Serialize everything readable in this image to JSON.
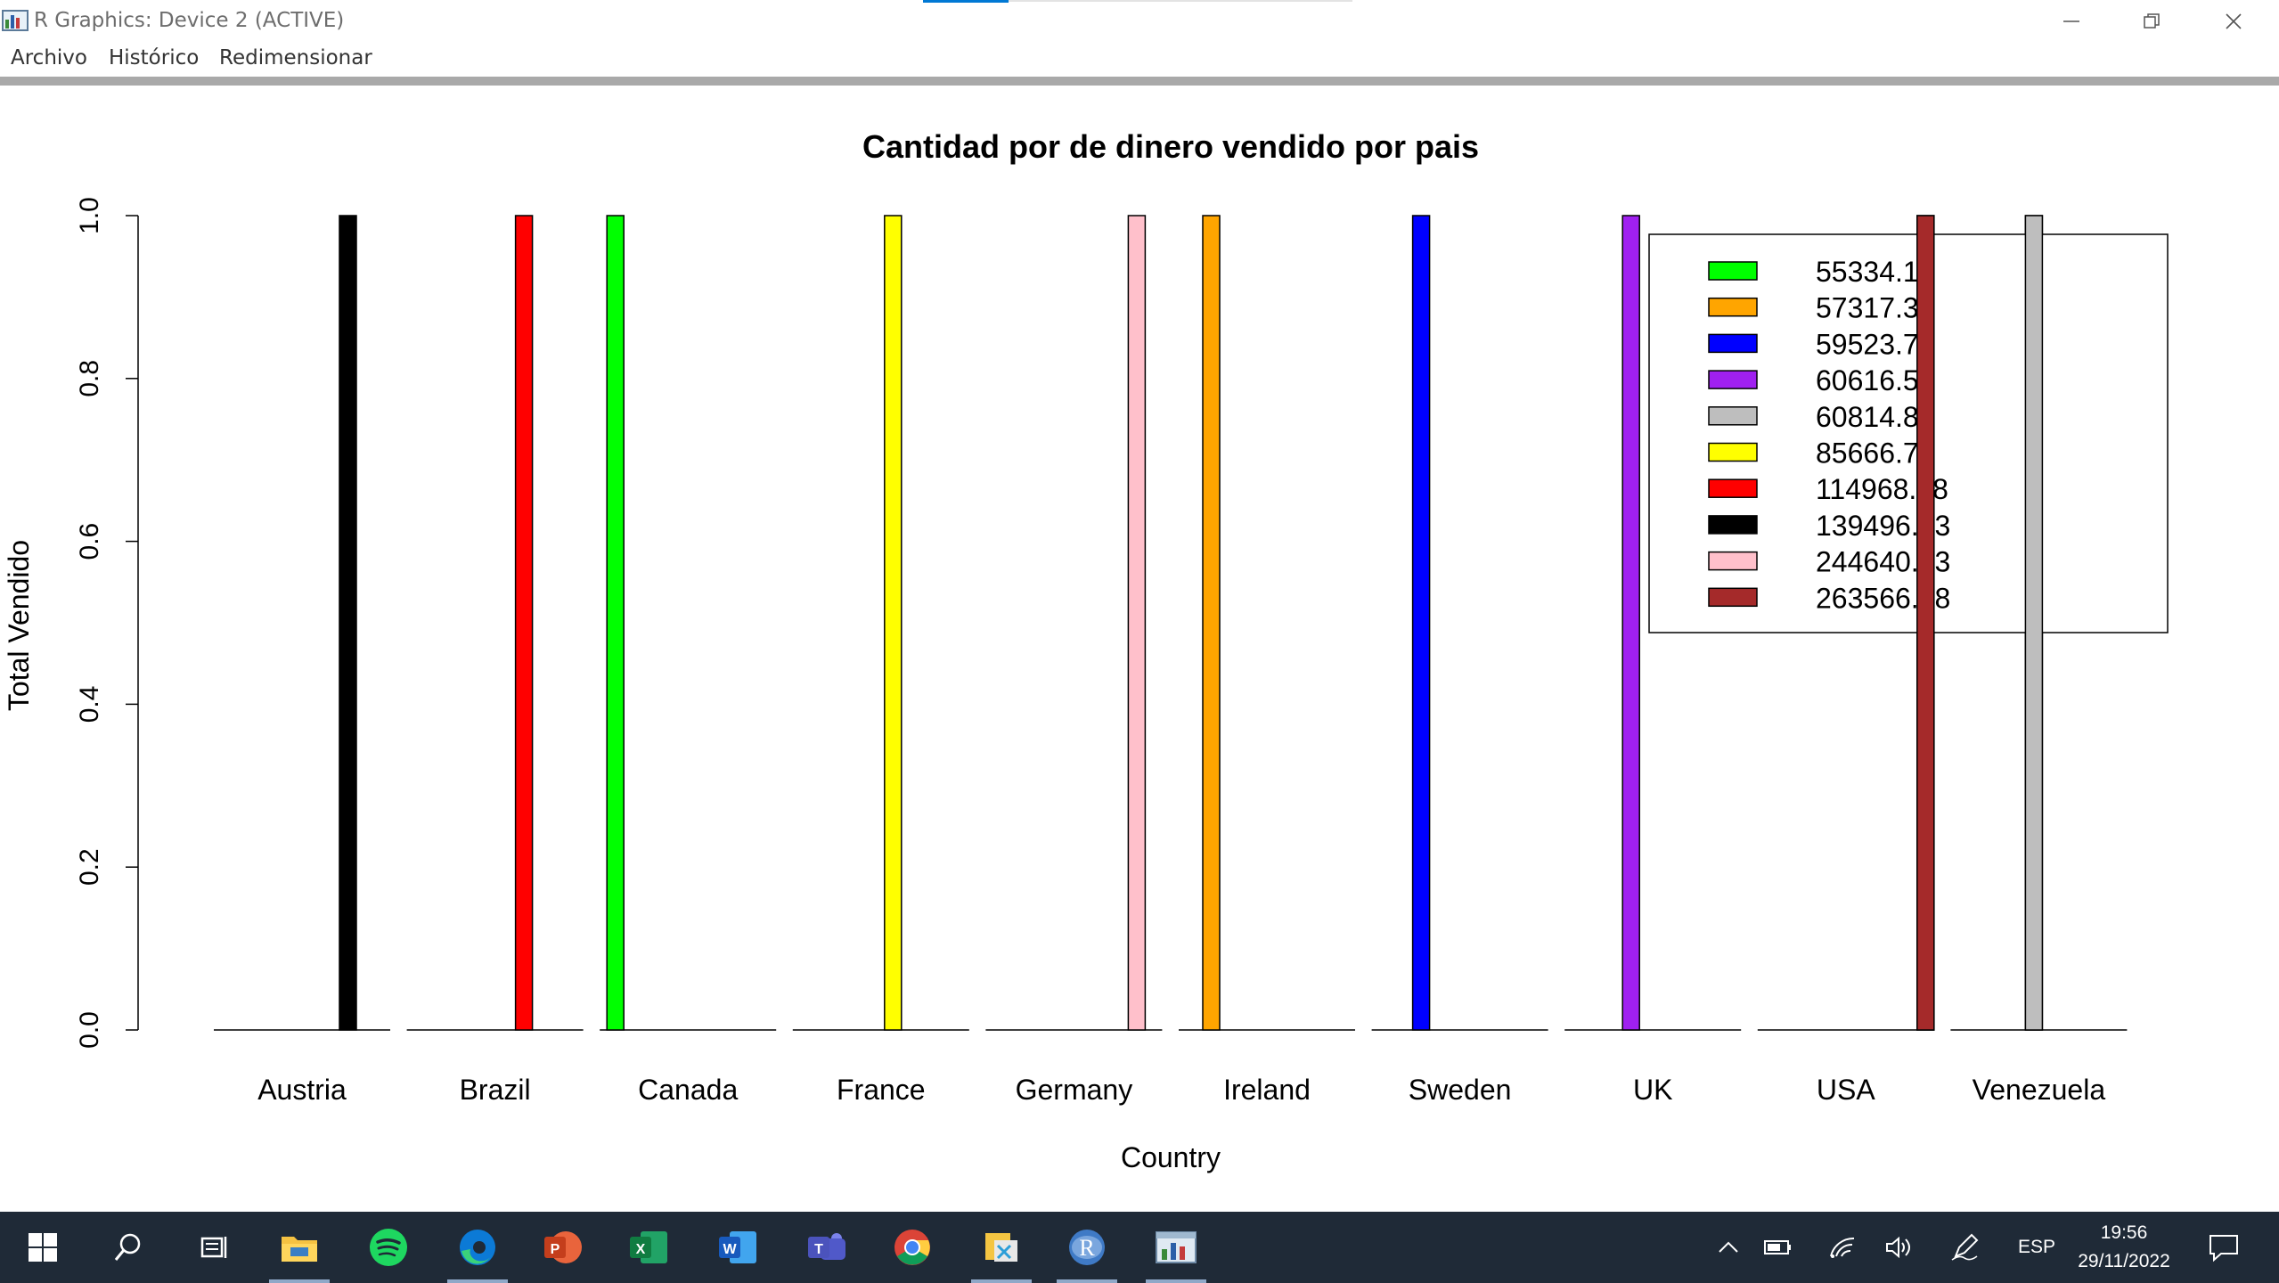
{
  "window": {
    "title": "R Graphics: Device 2 (ACTIVE)",
    "icons": {
      "app": "r-graphics-window-icon",
      "minimize": "minimize-icon",
      "maximize": "restore-icon",
      "close": "close-icon"
    }
  },
  "menu": {
    "items": [
      "Archivo",
      "Histórico",
      "Redimensionar"
    ]
  },
  "chart_data": {
    "type": "bar",
    "title": "Cantidad por de dinero vendido por pais",
    "xlabel": "Country",
    "ylabel": "Total Vendido",
    "ylim": [
      0,
      1
    ],
    "yticks": [
      "0.0",
      "0.2",
      "0.4",
      "0.6",
      "0.8",
      "1.0"
    ],
    "categories": [
      "Austria",
      "Brazil",
      "Canada",
      "France",
      "Germany",
      "Ireland",
      "Sweden",
      "UK",
      "USA",
      "Venezuela"
    ],
    "grouped": true,
    "series": [
      {
        "name": "55334.1",
        "color": "#00ff00",
        "values": [
          0,
          0,
          1,
          0,
          0,
          0,
          0,
          0,
          0,
          0
        ]
      },
      {
        "name": "57317.39",
        "color": "#ffa500",
        "values": [
          0,
          0,
          0,
          0,
          0,
          1,
          0,
          0,
          0,
          0
        ]
      },
      {
        "name": "59523.7",
        "color": "#0000ff",
        "values": [
          0,
          0,
          0,
          0,
          0,
          0,
          1,
          0,
          0,
          0
        ]
      },
      {
        "name": "60616.51",
        "color": "#a020f0",
        "values": [
          0,
          0,
          0,
          0,
          0,
          0,
          0,
          1,
          0,
          0
        ]
      },
      {
        "name": "60814.89",
        "color": "#bebebe",
        "values": [
          0,
          0,
          0,
          0,
          0,
          0,
          0,
          0,
          0,
          1
        ]
      },
      {
        "name": "85666.76",
        "color": "#ffff00",
        "values": [
          0,
          0,
          0,
          1,
          0,
          0,
          0,
          0,
          0,
          0
        ]
      },
      {
        "name": "114968.48",
        "color": "#ff0000",
        "values": [
          0,
          1,
          0,
          0,
          0,
          0,
          0,
          0,
          0,
          0
        ]
      },
      {
        "name": "139496.63",
        "color": "#000000",
        "values": [
          1,
          0,
          0,
          0,
          0,
          0,
          0,
          0,
          0,
          0
        ]
      },
      {
        "name": "244640.63",
        "color": "#ffc0cb",
        "values": [
          0,
          0,
          0,
          0,
          1,
          0,
          0,
          0,
          0,
          0
        ]
      },
      {
        "name": "263566.98",
        "color": "#a52a2a",
        "values": [
          0,
          0,
          0,
          0,
          0,
          0,
          0,
          0,
          1,
          0
        ]
      }
    ],
    "legend": "top-right",
    "grid": false
  },
  "taskbar": {
    "apps": [
      {
        "name": "start",
        "icon": "windows-start-icon"
      },
      {
        "name": "search",
        "icon": "search-icon"
      },
      {
        "name": "task-view",
        "icon": "task-view-icon"
      },
      {
        "name": "file-explorer",
        "icon": "folder-icon",
        "active": true
      },
      {
        "name": "spotify",
        "icon": "spotify-icon"
      },
      {
        "name": "edge",
        "icon": "edge-icon",
        "active": true
      },
      {
        "name": "powerpoint",
        "icon": "powerpoint-icon"
      },
      {
        "name": "excel",
        "icon": "excel-icon"
      },
      {
        "name": "word",
        "icon": "word-icon"
      },
      {
        "name": "teams",
        "icon": "teams-icon"
      },
      {
        "name": "chrome",
        "icon": "chrome-icon"
      },
      {
        "name": "data-tool",
        "icon": "database-tool-icon",
        "active": true
      },
      {
        "name": "r",
        "icon": "r-icon",
        "active": true
      },
      {
        "name": "r-graphics",
        "icon": "r-graphics-icon",
        "active": true
      }
    ],
    "tray": {
      "icons": [
        "chevron-up-icon",
        "battery-icon",
        "wifi-icon",
        "volume-icon",
        "pen-icon"
      ],
      "language": "ESP",
      "time": "19:56",
      "date": "29/11/2022",
      "notification_icon": "notification-icon"
    }
  }
}
